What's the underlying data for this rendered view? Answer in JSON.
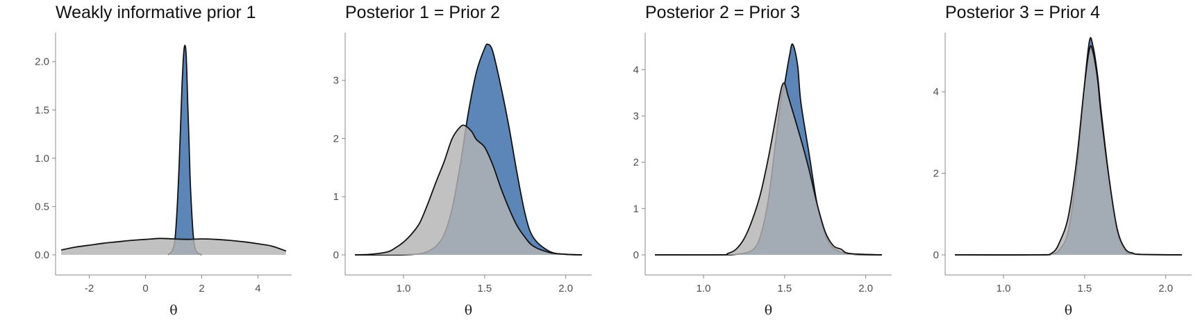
{
  "chart_data": [
    {
      "type": "area",
      "title": "Weakly informative prior 1",
      "xlabel": "θ",
      "ylabel": "",
      "xlim": [
        -3.2,
        5.2
      ],
      "ylim": [
        0,
        2.3
      ],
      "xticks": [
        -2,
        0,
        2,
        4
      ],
      "xtick_labels": [
        "-2",
        "0",
        "2",
        "4"
      ],
      "yticks": [
        0,
        0.5,
        1,
        1.5,
        2
      ],
      "ytick_labels": [
        "0.0",
        "0.5",
        "1.0",
        "1.5",
        "2.0"
      ],
      "grid": false,
      "series": [
        {
          "role": "posterior",
          "color": "#4a79b0",
          "x": [
            0.8,
            1.0,
            1.1,
            1.2,
            1.3,
            1.35,
            1.4,
            1.45,
            1.5,
            1.55,
            1.6,
            1.7,
            1.8,
            2.0
          ],
          "y": [
            0,
            0.08,
            0.35,
            0.95,
            1.75,
            2.05,
            2.17,
            2.05,
            1.6,
            1.15,
            0.7,
            0.2,
            0.04,
            0
          ]
        },
        {
          "role": "prior",
          "color": "#b3b3b3",
          "x": [
            -3,
            -2.5,
            -2,
            -1.5,
            -1,
            -0.5,
            0,
            0.5,
            1,
            1.5,
            2,
            2.5,
            3,
            3.5,
            4,
            4.5,
            5
          ],
          "y": [
            0.05,
            0.08,
            0.1,
            0.12,
            0.135,
            0.15,
            0.16,
            0.17,
            0.165,
            0.16,
            0.165,
            0.16,
            0.15,
            0.135,
            0.115,
            0.09,
            0.04
          ]
        }
      ]
    },
    {
      "type": "area",
      "title": "Posterior 1 = Prior 2",
      "xlabel": "θ",
      "ylabel": "",
      "xlim": [
        0.64,
        2.16
      ],
      "ylim": [
        0,
        3.82
      ],
      "xticks": [
        1.0,
        1.5,
        2.0
      ],
      "xtick_labels": [
        "1.0",
        "1.5",
        "2.0"
      ],
      "yticks": [
        0,
        1,
        2,
        3
      ],
      "ytick_labels": [
        "0",
        "1",
        "2",
        "3"
      ],
      "grid": false,
      "series": [
        {
          "role": "posterior",
          "color": "#4a79b0",
          "x": [
            0.7,
            1.0,
            1.1,
            1.15,
            1.2,
            1.25,
            1.3,
            1.35,
            1.4,
            1.45,
            1.5,
            1.52,
            1.55,
            1.6,
            1.65,
            1.7,
            1.75,
            1.8,
            1.9,
            2.0,
            2.1
          ],
          "y": [
            0,
            0,
            0.02,
            0.06,
            0.15,
            0.35,
            0.8,
            1.55,
            2.45,
            3.15,
            3.55,
            3.62,
            3.5,
            2.9,
            2.2,
            1.4,
            0.7,
            0.3,
            0.06,
            0.01,
            0
          ]
        },
        {
          "role": "prior",
          "color": "#b3b3b3",
          "x": [
            0.7,
            0.8,
            0.9,
            0.95,
            1.0,
            1.05,
            1.1,
            1.15,
            1.2,
            1.25,
            1.3,
            1.35,
            1.38,
            1.42,
            1.45,
            1.5,
            1.55,
            1.6,
            1.65,
            1.7,
            1.75,
            1.8,
            1.9,
            2.0,
            2.1
          ],
          "y": [
            0,
            0.01,
            0.05,
            0.12,
            0.22,
            0.36,
            0.55,
            0.88,
            1.25,
            1.6,
            2.0,
            2.2,
            2.22,
            2.12,
            1.98,
            1.85,
            1.55,
            1.15,
            0.8,
            0.5,
            0.3,
            0.15,
            0.04,
            0.01,
            0
          ]
        }
      ]
    },
    {
      "type": "area",
      "title": "Posterior 2 = Prior 3",
      "xlabel": "θ",
      "ylabel": "",
      "xlim": [
        0.64,
        2.16
      ],
      "ylim": [
        0,
        4.8
      ],
      "xticks": [
        1.0,
        1.5,
        2.0
      ],
      "xtick_labels": [
        "1.0",
        "1.5",
        "2.0"
      ],
      "yticks": [
        0,
        1,
        2,
        3,
        4
      ],
      "ytick_labels": [
        "0",
        "1",
        "2",
        "3",
        "4"
      ],
      "grid": false,
      "series": [
        {
          "role": "posterior",
          "color": "#4a79b0",
          "x": [
            0.7,
            1.1,
            1.2,
            1.3,
            1.35,
            1.4,
            1.45,
            1.48,
            1.5,
            1.53,
            1.55,
            1.58,
            1.6,
            1.65,
            1.7,
            1.75,
            1.8,
            1.9,
            2.1
          ],
          "y": [
            0,
            0,
            0.01,
            0.1,
            0.4,
            1.2,
            2.6,
            3.4,
            3.7,
            4.3,
            4.55,
            4.1,
            3.3,
            2.2,
            1.1,
            0.45,
            0.15,
            0.02,
            0
          ]
        },
        {
          "role": "prior",
          "color": "#b3b3b3",
          "x": [
            0.7,
            1.1,
            1.15,
            1.2,
            1.25,
            1.3,
            1.35,
            1.4,
            1.45,
            1.48,
            1.5,
            1.52,
            1.55,
            1.6,
            1.65,
            1.7,
            1.75,
            1.8,
            1.85,
            1.9,
            2.1
          ],
          "y": [
            0,
            0,
            0.03,
            0.12,
            0.35,
            0.75,
            1.3,
            2.1,
            3.05,
            3.6,
            3.7,
            3.45,
            3.1,
            2.5,
            1.85,
            1.1,
            0.5,
            0.2,
            0.12,
            0.03,
            0
          ]
        }
      ]
    },
    {
      "type": "area",
      "title": "Posterior 3 = Prior 4",
      "xlabel": "θ",
      "ylabel": "",
      "xlim": [
        0.64,
        2.16
      ],
      "ylim": [
        0,
        5.45
      ],
      "xticks": [
        1.0,
        1.5,
        2.0
      ],
      "xtick_labels": [
        "1.0",
        "1.5",
        "2.0"
      ],
      "yticks": [
        0,
        2,
        4
      ],
      "ytick_labels": [
        "0",
        "2",
        "4"
      ],
      "grid": false,
      "series": [
        {
          "role": "posterior",
          "color": "#4a79b0",
          "x": [
            0.7,
            1.2,
            1.3,
            1.35,
            1.4,
            1.45,
            1.5,
            1.53,
            1.55,
            1.58,
            1.6,
            1.65,
            1.7,
            1.75,
            1.8,
            2.1
          ],
          "y": [
            0,
            0,
            0.02,
            0.15,
            0.6,
            2.0,
            4.2,
            5.25,
            5.15,
            4.4,
            3.6,
            1.9,
            0.6,
            0.12,
            0.02,
            0
          ]
        },
        {
          "role": "prior",
          "color": "#b3b3b3",
          "x": [
            0.7,
            1.2,
            1.3,
            1.35,
            1.4,
            1.45,
            1.5,
            1.53,
            1.55,
            1.58,
            1.6,
            1.65,
            1.7,
            1.75,
            1.8,
            1.85,
            2.1
          ],
          "y": [
            0,
            0,
            0.05,
            0.35,
            0.95,
            2.3,
            4.2,
            5.05,
            5.0,
            4.3,
            3.5,
            1.9,
            0.65,
            0.15,
            0.04,
            0.01,
            0
          ]
        }
      ]
    }
  ]
}
